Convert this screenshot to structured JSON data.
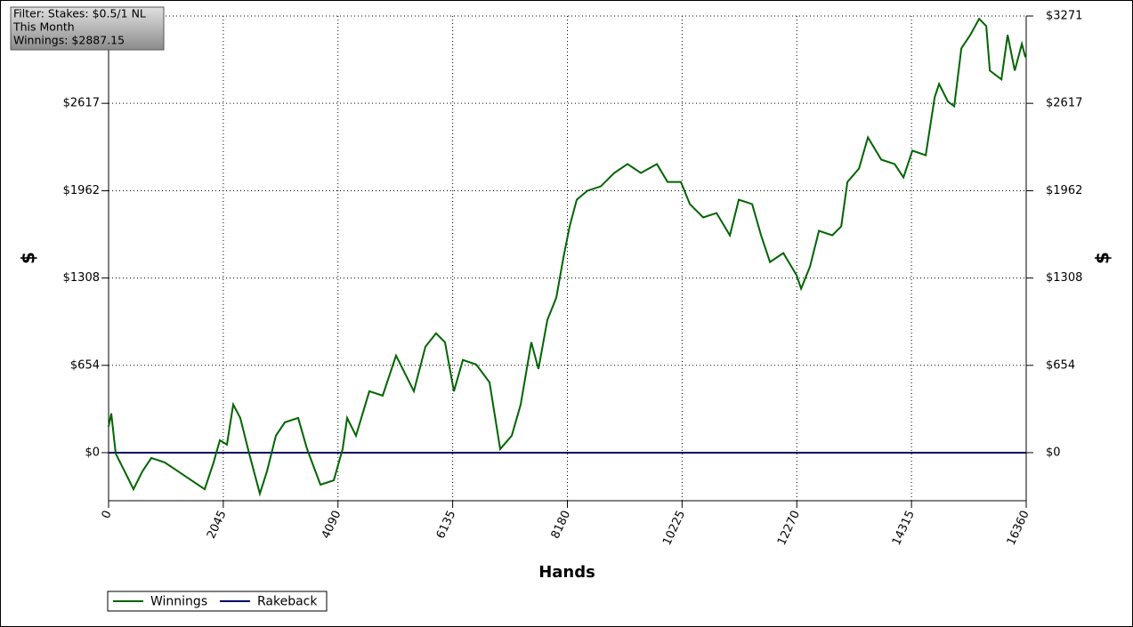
{
  "chart_data": {
    "type": "line",
    "info": [
      "Filter: Stakes: $0.5/1 NL",
      "This Month",
      "Winnings: $2887.15"
    ],
    "xlabel": "Hands",
    "ylabel": "$",
    "xlim": [
      0,
      16360
    ],
    "xticks": [
      0,
      2045,
      4090,
      6135,
      8180,
      10225,
      12270,
      14315,
      16360
    ],
    "ylim": [
      -360,
      3271
    ],
    "yticks": [
      {
        "value": 0,
        "label": "$0"
      },
      {
        "value": 654,
        "label": "$654"
      },
      {
        "value": 1308,
        "label": "$1308"
      },
      {
        "value": 1962,
        "label": "$1962"
      },
      {
        "value": 2617,
        "label": "$2617"
      },
      {
        "value": 3271,
        "label": "$3271"
      }
    ],
    "grid": true,
    "legend": "bottom-left",
    "series": [
      {
        "name": "Winnings",
        "color": "#006400",
        "x": [
          0,
          48,
          127,
          286,
          444,
          603,
          762,
          1000,
          1238,
          1476,
          1714,
          1872,
          1984,
          2110,
          2222,
          2348,
          2507,
          2697,
          2824,
          2983,
          3142,
          3380,
          3539,
          3777,
          4015,
          4173,
          4253,
          4411,
          4649,
          4887,
          5125,
          5284,
          5443,
          5649,
          5839,
          5998,
          6157,
          6316,
          6554,
          6792,
          6982,
          7188,
          7347,
          7537,
          7664,
          7823,
          7982,
          8109,
          8220,
          8347,
          8537,
          8775,
          9014,
          9252,
          9490,
          9776,
          9966,
          10204,
          10363,
          10601,
          10839,
          11077,
          11236,
          11474,
          11633,
          11792,
          12030,
          12268,
          12347,
          12506,
          12665,
          12903,
          13062,
          13173,
          13379,
          13538,
          13776,
          14014,
          14172,
          14331,
          14569,
          14728,
          14807,
          14966,
          15077,
          15204,
          15363,
          15521,
          15648,
          15712,
          15918,
          16029,
          16156,
          16283,
          16346
        ],
        "values": [
          194,
          294,
          -7,
          -140,
          -274,
          -140,
          -40,
          -73,
          -140,
          -207,
          -274,
          -73,
          93,
          60,
          360,
          260,
          -7,
          -307,
          -140,
          127,
          227,
          260,
          27,
          -240,
          -207,
          27,
          260,
          127,
          460,
          427,
          727,
          594,
          460,
          794,
          894,
          827,
          460,
          694,
          661,
          527,
          27,
          127,
          360,
          827,
          627,
          994,
          1161,
          1461,
          1695,
          1895,
          1962,
          1995,
          2095,
          2162,
          2095,
          2162,
          2028,
          2028,
          1862,
          1762,
          1795,
          1628,
          1895,
          1862,
          1628,
          1428,
          1495,
          1328,
          1228,
          1395,
          1662,
          1628,
          1695,
          2028,
          2128,
          2362,
          2195,
          2162,
          2062,
          2262,
          2228,
          2662,
          2762,
          2629,
          2595,
          3029,
          3129,
          3250,
          3196,
          2862,
          2796,
          3129,
          2862,
          3062,
          2962
        ]
      },
      {
        "name": "Rakeback",
        "color": "#000066",
        "x": [
          0,
          16360
        ],
        "values": [
          0,
          0
        ]
      }
    ]
  }
}
